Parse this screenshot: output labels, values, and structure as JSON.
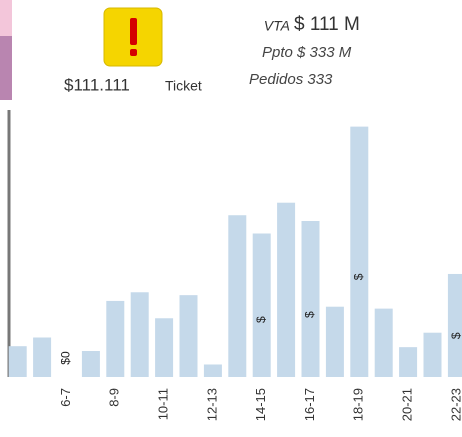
{
  "kpi": {
    "ticket_value": "$111.111",
    "ticket_label": "Ticket",
    "vta_label": "VTA",
    "vta_value": "$ 111 M",
    "ppto": "Ppto $ 333 M",
    "pedidos": "Pedidos 333"
  },
  "chart_data": {
    "type": "bar",
    "color": "#c5d9ea",
    "categories": [
      null,
      null,
      "6-7",
      null,
      "8-9",
      null,
      "10-11",
      null,
      "12-13",
      null,
      "14-15",
      null,
      "16-17",
      null,
      "18-19",
      null,
      "20-21",
      null,
      "22-23",
      null
    ],
    "values": [
      32,
      41,
      0,
      27,
      79,
      88,
      61,
      85,
      13,
      168,
      149,
      181,
      162,
      73,
      260,
      71,
      31,
      46,
      107,
      15
    ],
    "value_labels": [
      null,
      null,
      "$0",
      null,
      null,
      null,
      null,
      null,
      null,
      null,
      "$",
      null,
      "$",
      null,
      "$",
      null,
      null,
      null,
      "$",
      null
    ],
    "ylim": [
      0,
      270
    ]
  }
}
